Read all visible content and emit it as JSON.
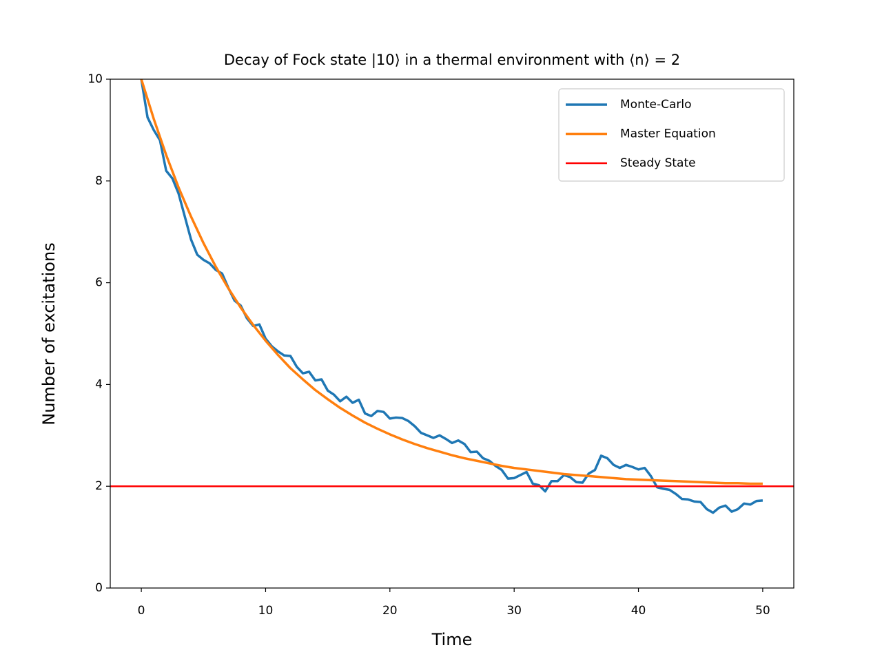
{
  "chart_data": {
    "type": "line",
    "title": "Decay of Fock state |10⟩ in a thermal environment with ⟨n⟩ = 2",
    "xlabel": "Time",
    "ylabel": "Number of excitations",
    "xlim": [
      -2.5,
      52.5
    ],
    "ylim": [
      0,
      10
    ],
    "xticks": [
      0,
      10,
      20,
      30,
      40,
      50
    ],
    "yticks": [
      0,
      2,
      4,
      6,
      8,
      10
    ],
    "legend": "upper right",
    "series": [
      {
        "name": "Monte-Carlo",
        "color": "#1f77b4",
        "x": [
          0,
          0.5,
          1,
          1.5,
          2,
          2.5,
          3,
          3.5,
          4,
          4.5,
          5,
          5.5,
          6,
          6.5,
          7,
          7.5,
          8,
          8.5,
          9,
          9.5,
          10,
          10.5,
          11,
          11.5,
          12,
          12.5,
          13,
          13.5,
          14,
          14.5,
          15,
          15.5,
          16,
          16.5,
          17,
          17.5,
          18,
          18.5,
          19,
          19.5,
          20,
          20.5,
          21,
          21.5,
          22,
          22.5,
          23,
          23.5,
          24,
          24.5,
          25,
          25.5,
          26,
          26.5,
          27,
          27.5,
          28,
          28.5,
          29,
          29.5,
          30,
          30.5,
          31,
          31.5,
          32,
          32.5,
          33,
          33.5,
          34,
          34.5,
          35,
          35.5,
          36,
          36.5,
          37,
          37.5,
          38,
          38.5,
          39,
          39.5,
          40,
          40.5,
          41,
          41.5,
          42,
          42.5,
          43,
          43.5,
          44,
          44.5,
          45,
          45.5,
          46,
          46.5,
          47,
          47.5,
          48,
          48.5,
          49,
          49.5,
          50
        ],
        "values": [
          10,
          9.25,
          9.0,
          8.8,
          8.2,
          8.05,
          7.75,
          7.3,
          6.85,
          6.55,
          6.45,
          6.38,
          6.25,
          6.18,
          5.9,
          5.65,
          5.55,
          5.3,
          5.15,
          5.18,
          4.9,
          4.75,
          4.65,
          4.57,
          4.56,
          4.35,
          4.22,
          4.25,
          4.08,
          4.1,
          3.88,
          3.8,
          3.67,
          3.76,
          3.64,
          3.7,
          3.43,
          3.38,
          3.48,
          3.46,
          3.33,
          3.35,
          3.34,
          3.28,
          3.18,
          3.05,
          3.0,
          2.95,
          3.0,
          2.93,
          2.85,
          2.9,
          2.83,
          2.67,
          2.68,
          2.55,
          2.5,
          2.4,
          2.32,
          2.15,
          2.16,
          2.22,
          2.28,
          2.05,
          2.02,
          1.9,
          2.1,
          2.1,
          2.22,
          2.18,
          2.08,
          2.07,
          2.25,
          2.32,
          2.6,
          2.55,
          2.42,
          2.36,
          2.42,
          2.38,
          2.33,
          2.36,
          2.2,
          1.98,
          1.95,
          1.93,
          1.85,
          1.75,
          1.74,
          1.7,
          1.69,
          1.55,
          1.48,
          1.58,
          1.62,
          1.5,
          1.55,
          1.66,
          1.64,
          1.71,
          1.72
        ]
      },
      {
        "name": "Master Equation",
        "color": "#ff7f0e",
        "x": [
          0,
          1,
          2,
          3,
          4,
          5,
          6,
          7,
          8,
          9,
          10,
          11,
          12,
          13,
          14,
          15,
          16,
          17,
          18,
          19,
          20,
          21,
          22,
          23,
          24,
          25,
          26,
          27,
          28,
          29,
          30,
          31,
          32,
          33,
          34,
          35,
          36,
          37,
          38,
          39,
          40,
          41,
          42,
          43,
          44,
          45,
          46,
          47,
          48,
          49,
          50
        ],
        "values": [
          10,
          9.22,
          8.51,
          7.87,
          7.3,
          6.78,
          6.31,
          5.89,
          5.51,
          5.17,
          4.86,
          4.58,
          4.32,
          4.1,
          3.89,
          3.71,
          3.54,
          3.39,
          3.25,
          3.13,
          3.02,
          2.92,
          2.83,
          2.75,
          2.68,
          2.61,
          2.55,
          2.5,
          2.45,
          2.4,
          2.36,
          2.33,
          2.3,
          2.27,
          2.24,
          2.22,
          2.2,
          2.18,
          2.16,
          2.14,
          2.13,
          2.12,
          2.11,
          2.1,
          2.09,
          2.08,
          2.07,
          2.06,
          2.06,
          2.05,
          2.05
        ]
      },
      {
        "name": "Steady State",
        "color": "#ff0000",
        "hline": 2
      }
    ]
  }
}
